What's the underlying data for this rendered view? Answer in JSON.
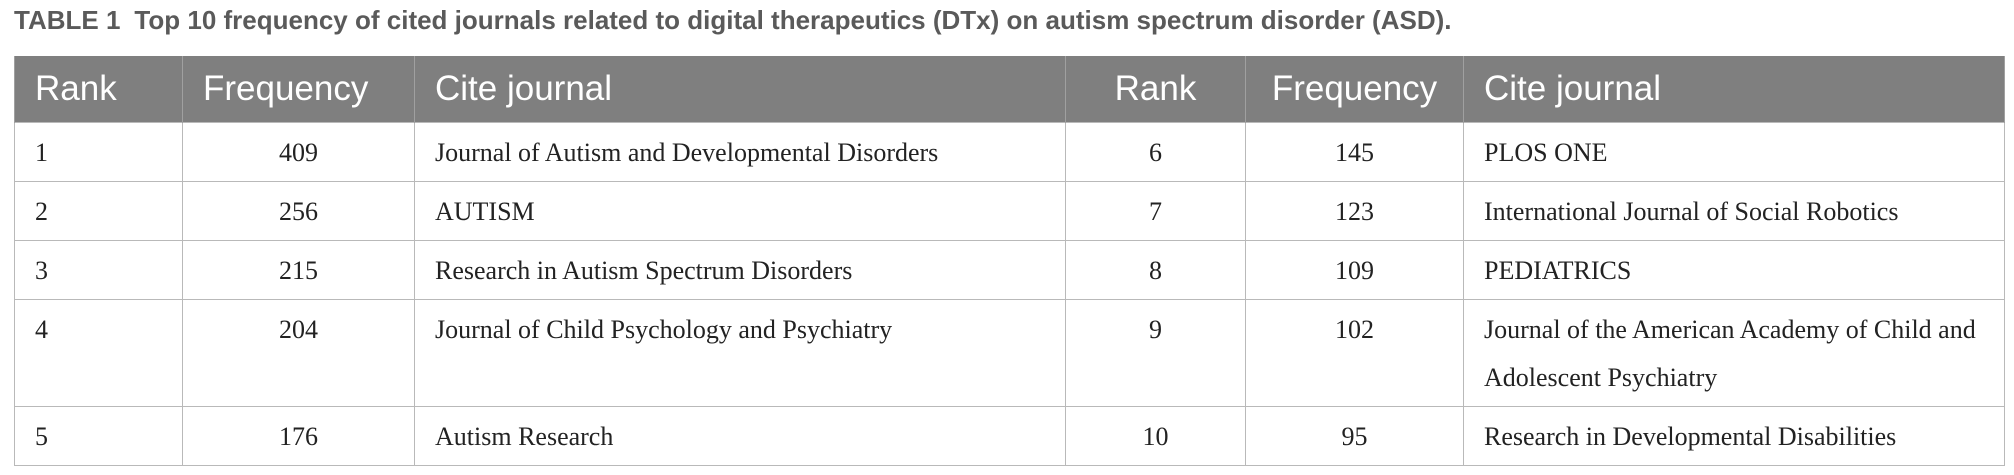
{
  "caption": {
    "label": "TABLE 1",
    "title": "Top 10 frequency of cited journals related to digital therapeutics (DTx) on autism spectrum disorder (ASD)."
  },
  "table": {
    "headers": [
      "Rank",
      "Frequency",
      "Cite journal",
      "Rank",
      "Frequency",
      "Cite journal"
    ],
    "rows": [
      {
        "rank_a": "1",
        "freq_a": "409",
        "journal_a": "Journal of Autism and Developmental Disorders",
        "rank_b": "6",
        "freq_b": "145",
        "journal_b": "PLOS ONE"
      },
      {
        "rank_a": "2",
        "freq_a": "256",
        "journal_a": "AUTISM",
        "rank_b": "7",
        "freq_b": "123",
        "journal_b": "International Journal of Social Robotics"
      },
      {
        "rank_a": "3",
        "freq_a": "215",
        "journal_a": "Research in Autism Spectrum Disorders",
        "rank_b": "8",
        "freq_b": "109",
        "journal_b": "PEDIATRICS"
      },
      {
        "rank_a": "4",
        "freq_a": "204",
        "journal_a": "Journal of Child Psychology and Psychiatry",
        "rank_b": "9",
        "freq_b": "102",
        "journal_b": "Journal of the American Academy of Child and Adolescent Psychiatry"
      },
      {
        "rank_a": "5",
        "freq_a": "176",
        "journal_a": "Autism Research",
        "rank_b": "10",
        "freq_b": "95",
        "journal_b": "Research in Developmental Disabilities"
      }
    ]
  },
  "colors": {
    "header_bg": "#7f7f7f",
    "header_text": "#ffffff",
    "border": "#b9b9b9",
    "caption_text": "#5a5a5a"
  }
}
